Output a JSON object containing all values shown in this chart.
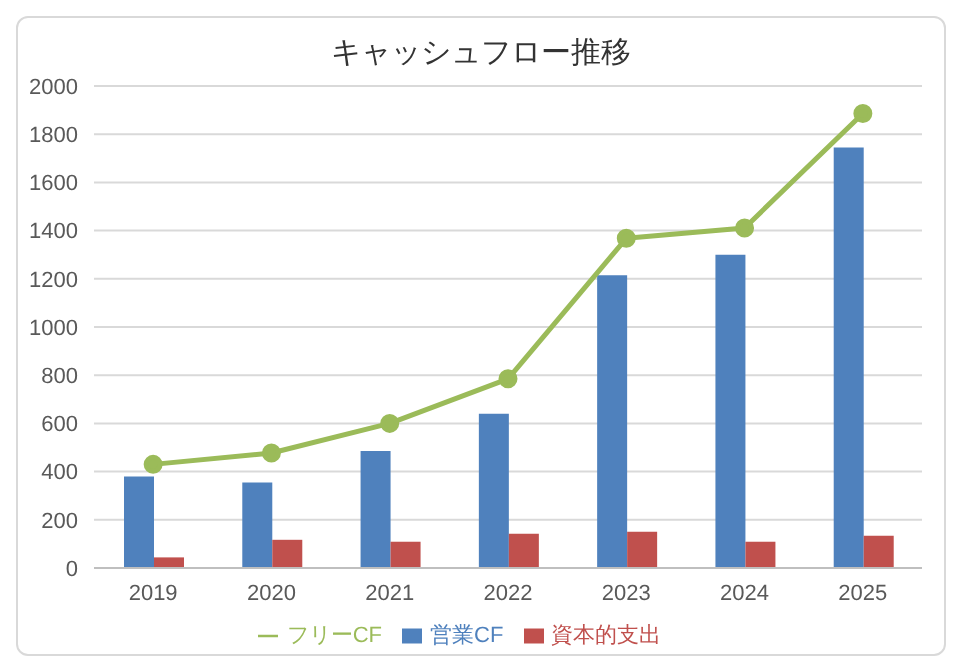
{
  "chart_data": {
    "type": "bar",
    "title": "キャッシュフロー推移",
    "categories": [
      "2019",
      "2020",
      "2021",
      "2022",
      "2023",
      "2024",
      "2025"
    ],
    "series": [
      {
        "name": "営業CF",
        "color": "#4f81bd",
        "values": [
          380,
          355,
          485,
          640,
          1215,
          1300,
          1745
        ]
      },
      {
        "name": "資本的支出",
        "color": "#c0504d",
        "values": [
          44,
          117,
          109,
          142,
          150,
          109,
          134
        ]
      },
      {
        "name": "フリーCF",
        "type": "line",
        "color": "#9bbb59",
        "marker": "circle",
        "values": [
          430,
          477,
          600,
          785,
          1368,
          1411,
          1886
        ]
      }
    ],
    "ylim": [
      0,
      2000
    ],
    "yticks": [
      0,
      200,
      400,
      600,
      800,
      1000,
      1200,
      1400,
      1600,
      1800,
      2000
    ],
    "grid": "y",
    "legend": "bottom"
  }
}
